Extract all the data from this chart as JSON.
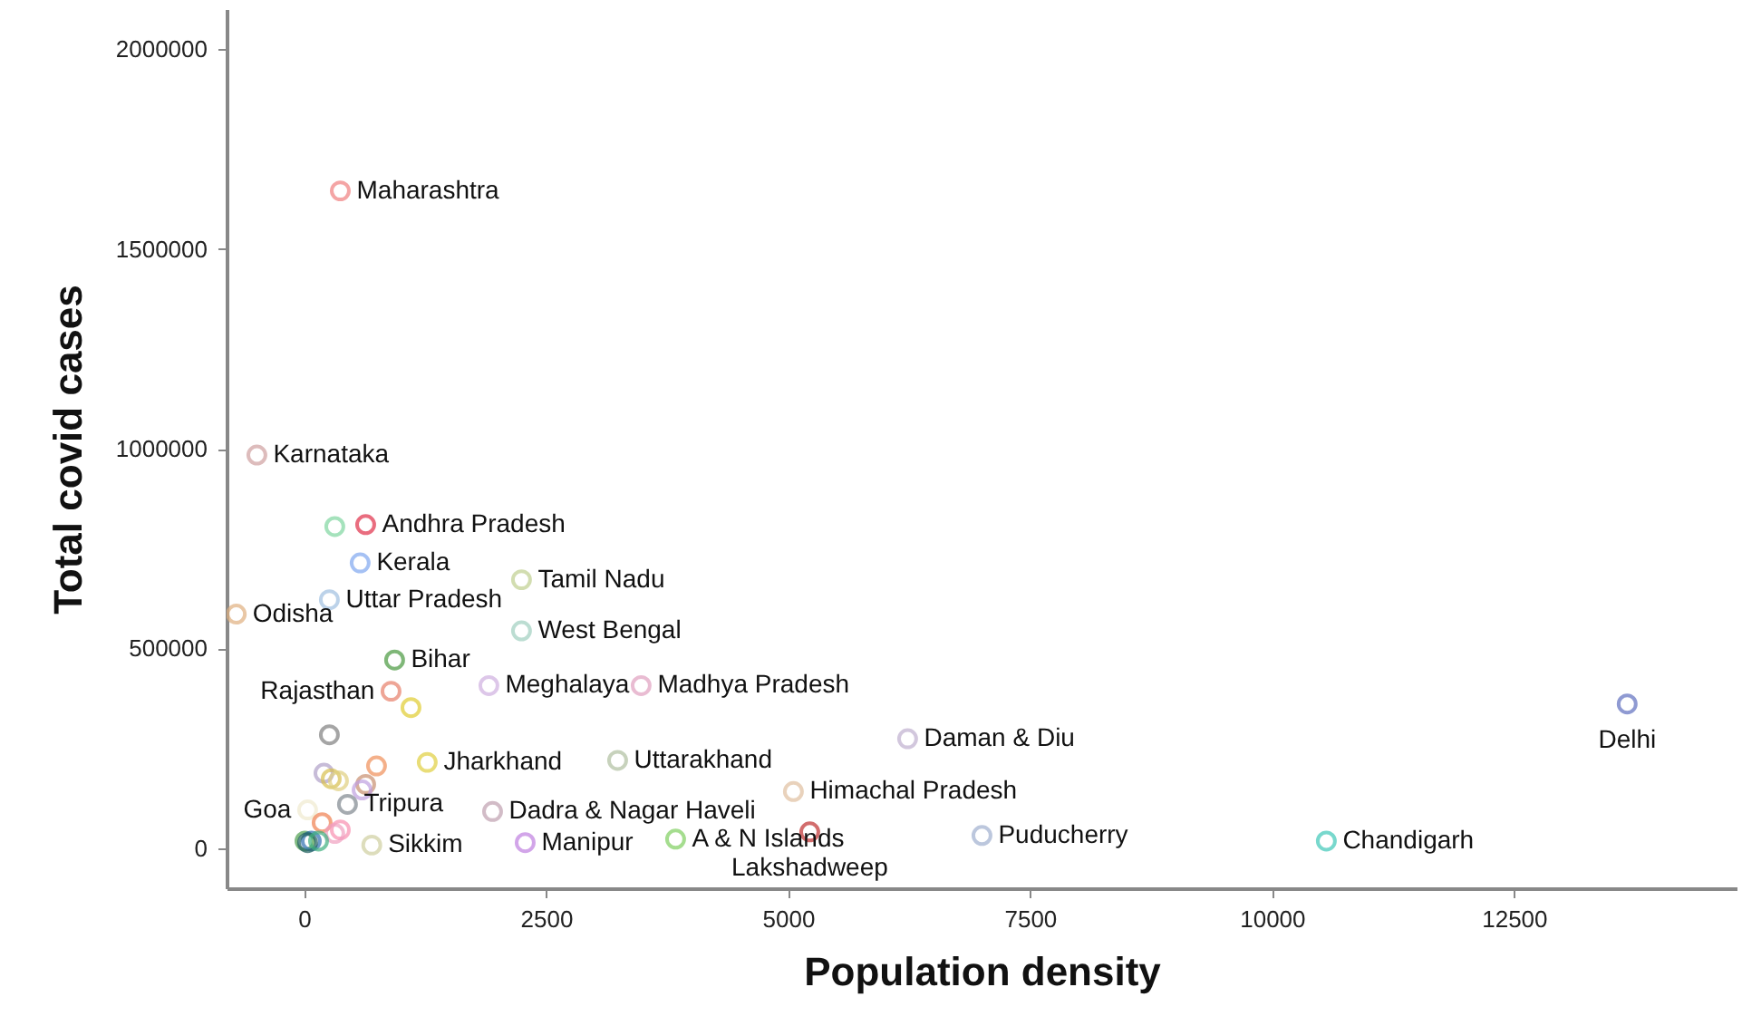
{
  "chart_data": {
    "type": "scatter",
    "xlabel": "Population density",
    "ylabel": "Total covid cases",
    "x": [
      375,
      318,
      637,
      580,
      936,
      899,
      1105,
      262,
      1273,
      749,
      206,
      281,
      356,
      637,
      600,
      449,
      37,
      187,
      375,
      318,
      10,
      75,
      37,
      150,
      5225,
      10562,
      13670,
      2285,
      3839,
      -487,
      262,
      2247,
      -700,
      2247,
      1910,
      3483,
      3240,
      6236,
      5056,
      7004,
      700,
      1948
    ],
    "values": [
      1645000,
      805000,
      810000,
      714000,
      471000,
      393000,
      352000,
      284000,
      215000,
      206000,
      188000,
      174000,
      169000,
      160000,
      146000,
      110000,
      96000,
      64000,
      46000,
      37000,
      18000,
      18000,
      14000,
      18000,
      41000,
      18000,
      361000,
      14000,
      23000,
      984000,
      622000,
      672000,
      586000,
      544000,
      407000,
      407000,
      220000,
      274000,
      142000,
      32000,
      8000,
      92000
    ],
    "colors": [
      "#f08080",
      "#7fd6a0",
      "#e0304a",
      "#80a8f0",
      "#4a9a40",
      "#e8806a",
      "#e0cc30",
      "#808080",
      "#e0d040",
      "#f0905a",
      "#b0a0c8",
      "#d8c050",
      "#e0d080",
      "#c89070",
      "#c0a0e0",
      "#808890",
      "#f0ead0",
      "#f08050",
      "#f890b0",
      "#f0a0c0",
      "#50a050",
      "#3070b0",
      "#206060",
      "#40b080",
      "#c03030",
      "#40c8b8",
      "#6070c0",
      "#c080e0",
      "#80d060",
      "#d0a0a0",
      "#a0c0e0",
      "#c0d090",
      "#e0b080",
      "#a0d0c0",
      "#d0b0e0",
      "#e0a0c0",
      "#b0c0a0",
      "#c0b0d0",
      "#e0c0a0",
      "#a0b0d0",
      "#d0d0a0",
      "#c0a0b0"
    ],
    "value_labels": [
      "Maharashtra",
      null,
      "Andhra Pradesh",
      "Kerala",
      "Bihar",
      "Rajasthan",
      null,
      null,
      "Jharkhand",
      null,
      null,
      null,
      null,
      null,
      null,
      "Tripura",
      "Goa",
      null,
      null,
      null,
      null,
      null,
      null,
      null,
      "Lakshadweep",
      "Chandigarh",
      "Delhi",
      "Manipur",
      "A & N Islands",
      "Karnataka",
      "Uttar Pradesh",
      "Tamil Nadu",
      "Odisha",
      "West Bengal",
      "Meghalaya",
      "Madhya Pradesh",
      "Uttarakhand",
      "Daman & Diu",
      "Himachal Pradesh",
      "Puducherry",
      "Sikkim",
      "Dadra & Nagar Haveli"
    ],
    "marker": "circle",
    "xlim": [
      -800,
      14800
    ],
    "xticks": [
      0,
      2500,
      5000,
      7500,
      10000,
      12500
    ],
    "ylim": [
      -100000,
      2100000
    ],
    "yticks": [
      0,
      500000,
      1000000,
      1500000,
      2000000
    ],
    "grid": false
  }
}
